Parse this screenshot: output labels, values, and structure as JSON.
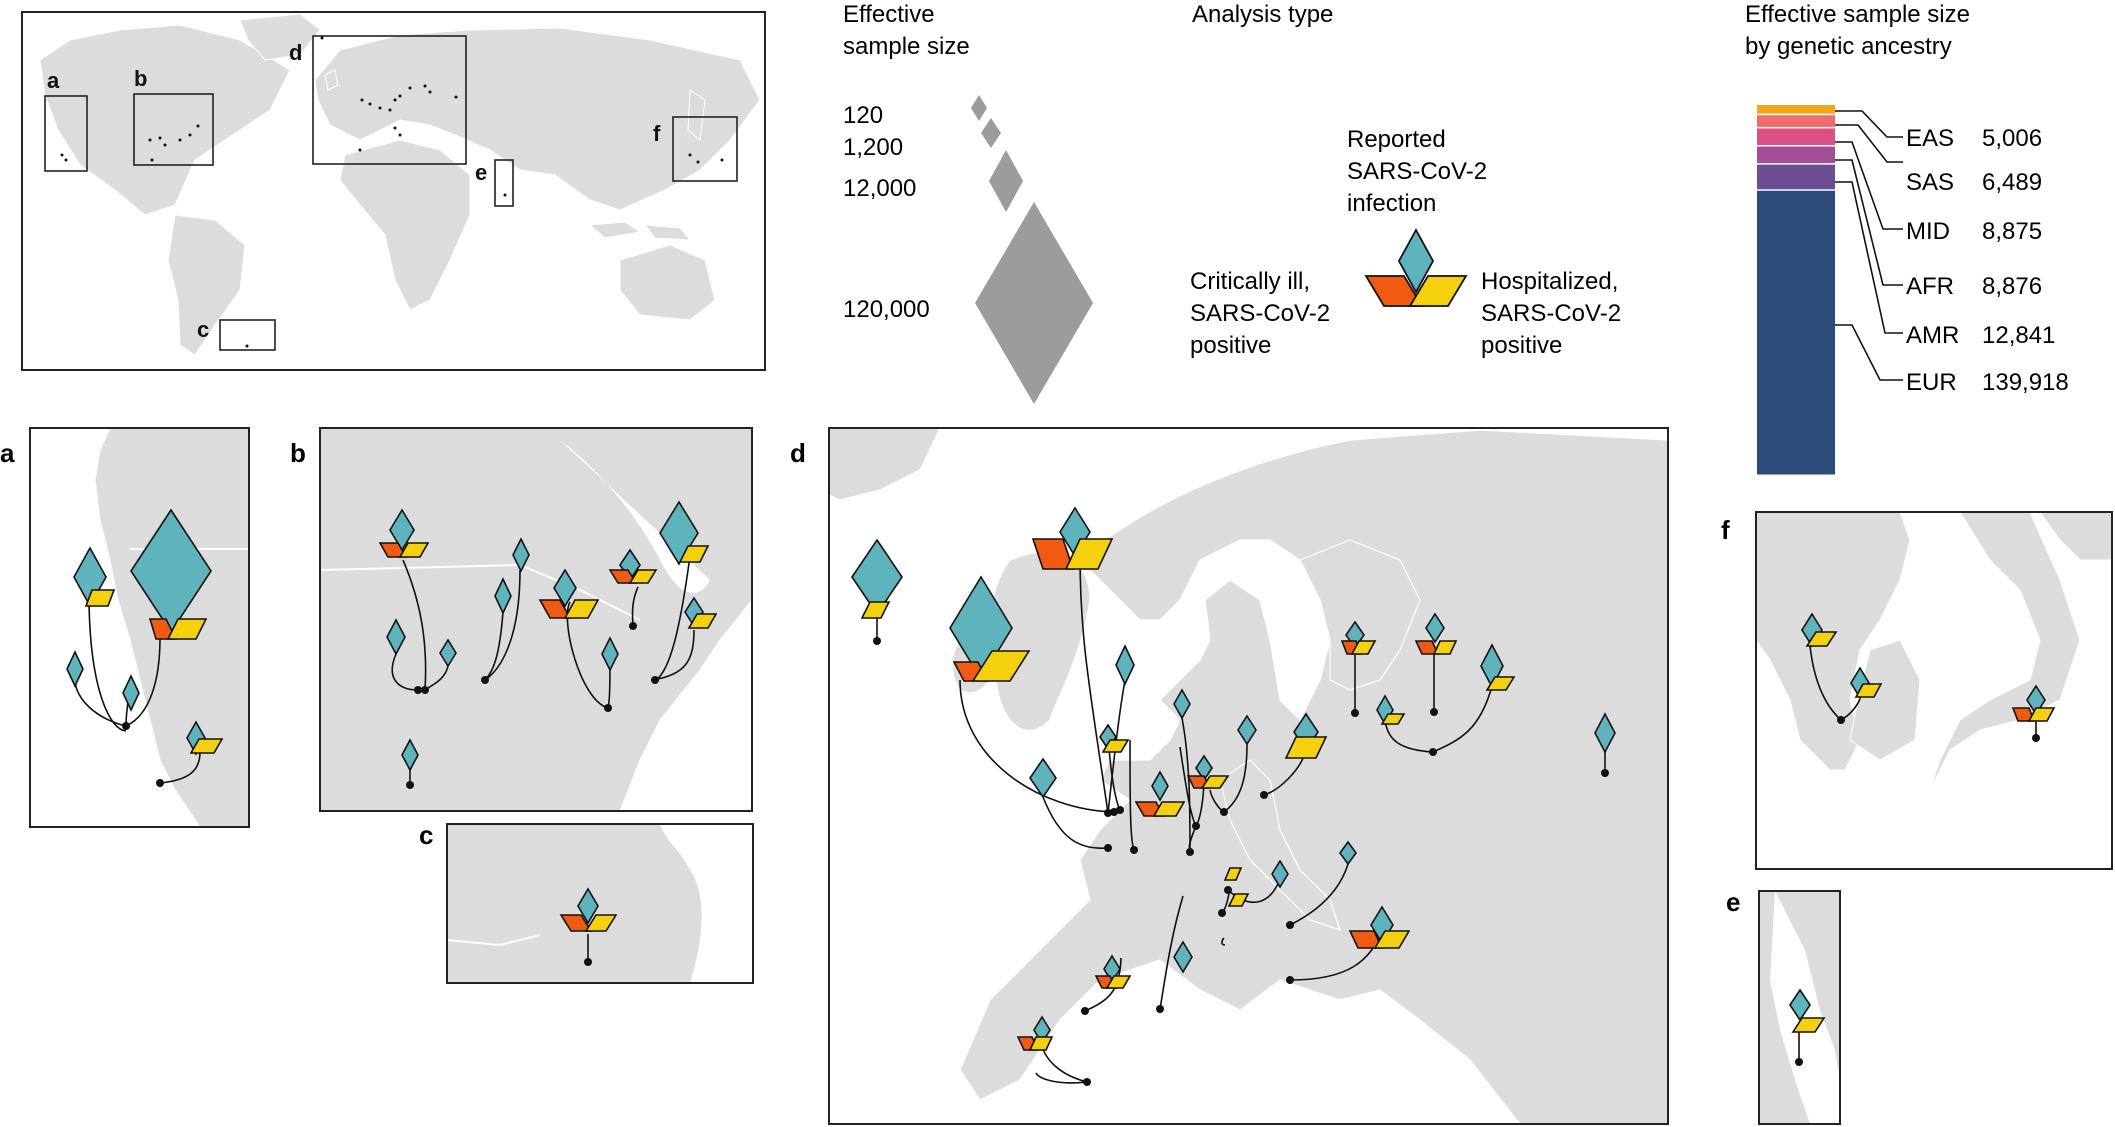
{
  "colors": {
    "land": "#dcdcdc",
    "border": "#ffffff",
    "diamond": "#5fb3bd",
    "critical": "#f15a12",
    "hospitalized": "#f5d00f",
    "legend_diamond": "#9c9c9c",
    "frame": "#222222"
  },
  "panel_labels": {
    "a": "a",
    "b": "b",
    "c": "c",
    "d": "d",
    "e": "e",
    "f": "f"
  },
  "sample_size_legend": {
    "title_line1": "Effective",
    "title_line2": "sample size",
    "items": [
      {
        "label": "120",
        "n": 120
      },
      {
        "label": "1,200",
        "n": 1200
      },
      {
        "label": "12,000",
        "n": 12000
      },
      {
        "label": "120,000",
        "n": 120000
      }
    ]
  },
  "analysis_legend": {
    "title": "Analysis type",
    "reported_line1": "Reported",
    "reported_line2": "SARS-CoV-2",
    "reported_line3": "infection",
    "critical_line1": "Critically ill,",
    "critical_line2": "SARS-CoV-2",
    "critical_line3": "positive",
    "hosp_line1": "Hospitalized,",
    "hosp_line2": "SARS-CoV-2",
    "hosp_line3": "positive"
  },
  "ancestry": {
    "title_line1": "Effective sample size",
    "title_line2": "by genetic ancestry",
    "items": [
      {
        "code": "EAS",
        "value": "5,006",
        "n": 5006,
        "color": "#f5a51a"
      },
      {
        "code": "SAS",
        "value": "6,489",
        "n": 6489,
        "color": "#f06b6b"
      },
      {
        "code": "MID",
        "value": "8,875",
        "n": 8875,
        "color": "#d94f86"
      },
      {
        "code": "AFR",
        "value": "8,876",
        "n": 8876,
        "color": "#a24f95"
      },
      {
        "code": "AMR",
        "value": "12,841",
        "n": 12841,
        "color": "#6a4d92"
      },
      {
        "code": "EUR",
        "value": "139,918",
        "n": 139918,
        "color": "#2c4a7a"
      }
    ]
  }
}
